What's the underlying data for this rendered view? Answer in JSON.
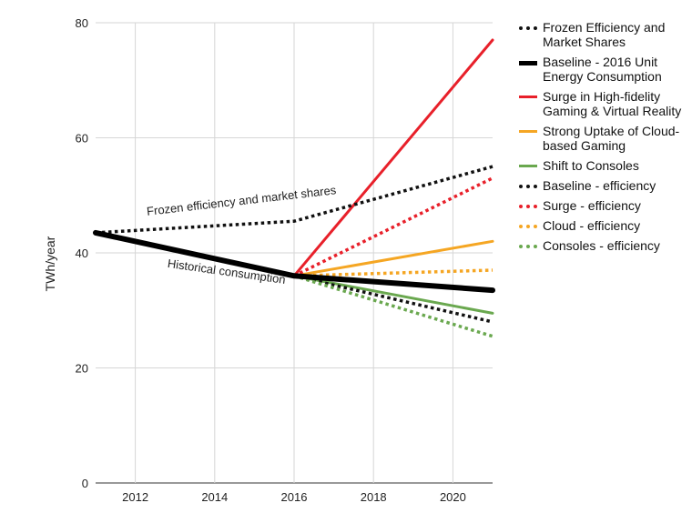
{
  "chart_data": {
    "type": "line",
    "ylabel": "TWh/year",
    "xlabel": "",
    "xlim": [
      2011,
      2021
    ],
    "ylim": [
      0,
      80
    ],
    "x_ticks": [
      2012,
      2014,
      2016,
      2018,
      2020
    ],
    "y_ticks": [
      0,
      20,
      40,
      60,
      80
    ],
    "grid": true,
    "legend_position": "right",
    "annotations": [
      {
        "text": "Frozen efficiency and market shares",
        "x": 2012.3,
        "y": 46.5
      },
      {
        "text": "Historical consumption",
        "x": 2012.8,
        "y": 37.5
      }
    ],
    "series": [
      {
        "name": "Frozen Efficiency and Market Shares",
        "color": "#111111",
        "style": "dotted",
        "points": [
          [
            2011,
            43.5
          ],
          [
            2016,
            45.5
          ],
          [
            2021,
            55
          ]
        ]
      },
      {
        "name": "Baseline - 2016 Unit Energy Consumption",
        "color": "#000000",
        "style": "thick",
        "points": [
          [
            2011,
            43.5
          ],
          [
            2016,
            36
          ],
          [
            2021,
            33.5
          ]
        ]
      },
      {
        "name": "Surge in High-fidelity Gaming & Virtual Reality",
        "color": "#e8202a",
        "style": "solid",
        "points": [
          [
            2016,
            36
          ],
          [
            2021,
            77
          ]
        ]
      },
      {
        "name": "Strong Uptake of Cloud-based Gaming",
        "color": "#f5a623",
        "style": "solid",
        "points": [
          [
            2016,
            36
          ],
          [
            2021,
            42
          ]
        ]
      },
      {
        "name": "Shift to Consoles",
        "color": "#6aa84f",
        "style": "solid",
        "points": [
          [
            2016,
            36
          ],
          [
            2021,
            29.5
          ]
        ]
      },
      {
        "name": "Baseline - efficiency",
        "color": "#111111",
        "style": "dotted",
        "points": [
          [
            2016,
            36
          ],
          [
            2021,
            28
          ]
        ]
      },
      {
        "name": "Surge - efficiency",
        "color": "#e8202a",
        "style": "dotted",
        "points": [
          [
            2016,
            36
          ],
          [
            2021,
            53
          ]
        ]
      },
      {
        "name": "Cloud - efficiency",
        "color": "#f5a623",
        "style": "dotted",
        "points": [
          [
            2016,
            36
          ],
          [
            2021,
            37
          ]
        ]
      },
      {
        "name": "Consoles - efficiency",
        "color": "#6aa84f",
        "style": "dotted",
        "points": [
          [
            2016,
            36
          ],
          [
            2021,
            25.5
          ]
        ]
      }
    ]
  }
}
